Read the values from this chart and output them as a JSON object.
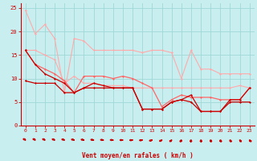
{
  "background_color": "#c8eef0",
  "grid_color": "#a0d8d8",
  "xlabel": "Vent moyen/en rafales ( km/h )",
  "xlabel_color": "#cc0000",
  "tick_color": "#cc0000",
  "ylim": [
    0,
    26
  ],
  "xlim": [
    -0.5,
    23.5
  ],
  "yticks": [
    0,
    5,
    10,
    15,
    20,
    25
  ],
  "xticks": [
    0,
    1,
    2,
    3,
    4,
    5,
    6,
    7,
    8,
    9,
    10,
    11,
    12,
    13,
    14,
    15,
    16,
    17,
    18,
    19,
    20,
    21,
    22,
    23
  ],
  "wind_angles": [
    315,
    315,
    310,
    305,
    300,
    295,
    290,
    285,
    280,
    275,
    270,
    265,
    260,
    245,
    230,
    215,
    200,
    185,
    175,
    170,
    165,
    160,
    155,
    150
  ],
  "lines": [
    {
      "x": [
        0,
        1,
        2,
        3,
        4,
        5,
        6,
        7,
        8,
        9,
        10,
        11,
        12,
        13,
        14,
        15,
        16,
        17,
        18,
        19,
        20,
        21,
        22,
        23
      ],
      "y": [
        24.5,
        19.5,
        21.5,
        18.5,
        7.0,
        18.5,
        18.0,
        16.0,
        16.0,
        16.0,
        16.0,
        16.0,
        15.5,
        16.0,
        16.0,
        15.5,
        10.0,
        16.0,
        12.0,
        12.0,
        11.0,
        11.0,
        11.0,
        11.0
      ],
      "color": "#ffaaaa",
      "lw": 0.8,
      "marker": "D",
      "ms": 1.5
    },
    {
      "x": [
        0,
        1,
        2,
        3,
        4,
        5,
        6,
        7,
        8,
        9,
        10,
        11,
        12,
        13,
        14,
        15,
        16,
        17,
        18,
        19,
        20,
        21,
        22,
        23
      ],
      "y": [
        16.0,
        16.0,
        15.0,
        14.0,
        9.0,
        10.5,
        9.0,
        9.0,
        8.5,
        8.5,
        8.5,
        8.0,
        8.0,
        8.0,
        8.0,
        8.0,
        8.0,
        8.0,
        8.0,
        8.0,
        8.0,
        8.0,
        8.5,
        8.0
      ],
      "color": "#ffaaaa",
      "lw": 0.8,
      "marker": "D",
      "ms": 1.5
    },
    {
      "x": [
        0,
        1,
        2,
        3,
        4,
        5,
        6,
        7,
        8,
        9,
        10,
        11,
        12,
        13,
        14,
        15,
        16,
        17,
        18,
        19,
        20,
        21,
        22,
        23
      ],
      "y": [
        16.0,
        13.0,
        12.0,
        11.0,
        9.5,
        7.0,
        10.5,
        10.5,
        10.5,
        10.0,
        10.5,
        10.0,
        9.0,
        8.0,
        4.0,
        5.5,
        6.5,
        6.0,
        6.0,
        6.0,
        5.5,
        5.5,
        5.5,
        8.0
      ],
      "color": "#ff6666",
      "lw": 0.9,
      "marker": "D",
      "ms": 1.5
    },
    {
      "x": [
        0,
        1,
        2,
        3,
        4,
        5,
        6,
        7,
        8,
        9,
        10,
        11,
        12,
        13,
        14,
        15,
        16,
        17,
        18,
        19,
        20,
        21,
        22,
        23
      ],
      "y": [
        16.0,
        13.0,
        11.0,
        10.0,
        9.0,
        7.0,
        8.0,
        8.0,
        8.0,
        8.0,
        8.0,
        8.0,
        3.5,
        3.5,
        3.5,
        5.0,
        5.5,
        6.5,
        3.0,
        3.0,
        3.0,
        5.5,
        5.5,
        8.0
      ],
      "color": "#cc0000",
      "lw": 0.9,
      "marker": "D",
      "ms": 1.5
    },
    {
      "x": [
        0,
        1,
        2,
        3,
        4,
        5,
        6,
        7,
        8,
        9,
        10,
        11,
        12,
        13,
        14,
        15,
        16,
        17,
        18,
        19,
        20,
        21,
        22,
        23
      ],
      "y": [
        9.5,
        9.0,
        9.0,
        9.0,
        7.0,
        7.0,
        8.0,
        9.0,
        8.5,
        8.0,
        8.0,
        8.0,
        3.5,
        3.5,
        3.5,
        5.0,
        5.5,
        5.0,
        3.0,
        3.0,
        3.0,
        5.0,
        5.0,
        5.0
      ],
      "color": "#cc0000",
      "lw": 0.9,
      "marker": "D",
      "ms": 1.5
    }
  ]
}
